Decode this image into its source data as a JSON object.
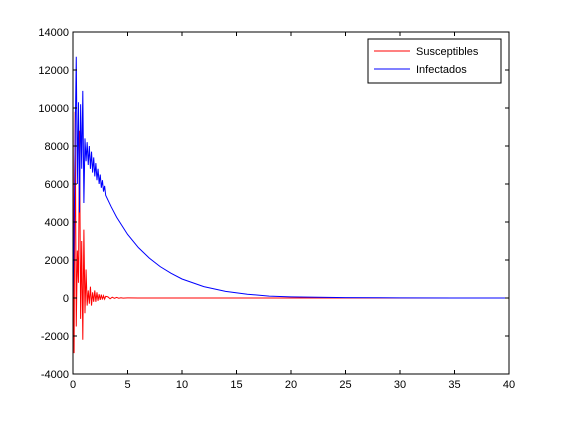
{
  "chart_data": {
    "type": "line",
    "title": "",
    "xlabel": "",
    "ylabel": "",
    "xlim": [
      0,
      40
    ],
    "ylim": [
      -4000,
      14000
    ],
    "xticks": [
      0,
      5,
      10,
      15,
      20,
      25,
      30,
      35,
      40
    ],
    "yticks": [
      -4000,
      -2000,
      0,
      2000,
      4000,
      6000,
      8000,
      10000,
      12000,
      14000
    ],
    "grid": false,
    "legend_position": "top-right",
    "series": [
      {
        "name": "Susceptibles",
        "color": "#ff0000",
        "x": [
          0,
          0.1,
          0.2,
          0.3,
          0.4,
          0.5,
          0.6,
          0.7,
          0.8,
          0.9,
          1.0,
          1.1,
          1.2,
          1.3,
          1.4,
          1.5,
          1.6,
          1.7,
          1.8,
          1.9,
          2.0,
          2.1,
          2.2,
          2.3,
          2.4,
          2.5,
          2.6,
          2.7,
          2.8,
          2.9,
          3.0,
          3.2,
          3.4,
          3.6,
          3.8,
          4.0,
          4.2,
          4.4,
          4.6,
          5.0,
          6,
          10,
          20,
          30,
          40
        ],
        "values": [
          10000,
          -2900,
          9800,
          -1500,
          2500,
          800,
          8800,
          -1100,
          3000,
          -2200,
          3600,
          -800,
          1500,
          -400,
          400,
          -300,
          600,
          -400,
          300,
          -200,
          400,
          -200,
          300,
          -150,
          200,
          -100,
          180,
          -80,
          120,
          -60,
          90,
          60,
          -40,
          40,
          -20,
          30,
          -10,
          15,
          -5,
          5,
          0,
          0,
          0,
          0,
          0
        ]
      },
      {
        "name": "Infectados",
        "color": "#0000ff",
        "x": [
          0,
          0.1,
          0.2,
          0.3,
          0.4,
          0.5,
          0.6,
          0.7,
          0.8,
          0.9,
          1.0,
          1.1,
          1.2,
          1.3,
          1.4,
          1.5,
          1.6,
          1.7,
          1.8,
          1.9,
          2.0,
          2.1,
          2.2,
          2.3,
          2.4,
          2.5,
          2.6,
          2.7,
          2.8,
          2.9,
          3.0,
          3.5,
          4,
          5,
          6,
          7,
          8,
          9,
          10,
          12,
          14,
          16,
          18,
          20,
          25,
          30,
          35,
          40
        ],
        "values": [
          0,
          3000,
          8500,
          12700,
          6000,
          10300,
          4500,
          10200,
          6800,
          10900,
          5000,
          8400,
          7200,
          8200,
          7000,
          8000,
          6800,
          7700,
          6600,
          7400,
          6400,
          7100,
          6200,
          6800,
          6000,
          6500,
          5800,
          6200,
          5600,
          5900,
          5400,
          4800,
          4250,
          3350,
          2650,
          2100,
          1650,
          1300,
          1000,
          600,
          350,
          200,
          100,
          60,
          20,
          5,
          0,
          0
        ]
      }
    ]
  }
}
